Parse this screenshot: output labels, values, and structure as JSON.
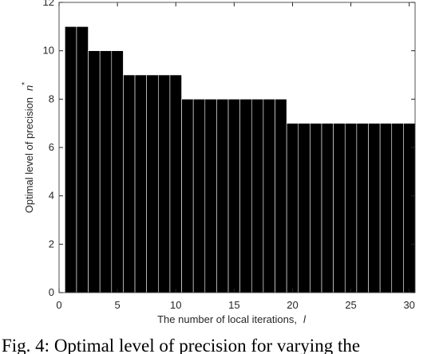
{
  "chart_data": {
    "type": "bar",
    "caption": "Fig. 4: Optimal level of precision for varying the",
    "xlabel": "The number of local iterations,",
    "xlabel_symbol": "l",
    "ylabel": "Optimal level of precision",
    "ylabel_symbol": "n",
    "ylabel_superscript": "*",
    "x": [
      1,
      2,
      3,
      4,
      5,
      6,
      7,
      8,
      9,
      10,
      11,
      12,
      13,
      14,
      15,
      16,
      17,
      18,
      19,
      20,
      21,
      22,
      23,
      24,
      25,
      26,
      27,
      28,
      29,
      30
    ],
    "values": [
      11,
      11,
      10,
      10,
      10,
      9,
      9,
      9,
      9,
      9,
      8,
      8,
      8,
      8,
      8,
      8,
      8,
      8,
      8,
      7,
      7,
      7,
      7,
      7,
      7,
      7,
      7,
      7,
      7,
      7
    ],
    "color": "#000000",
    "xlim": [
      0,
      30.5
    ],
    "xticks": [
      0,
      5,
      10,
      15,
      20,
      25,
      30
    ],
    "ylim": [
      0,
      12
    ],
    "yticks": [
      0,
      2,
      4,
      6,
      8,
      10,
      12
    ]
  }
}
